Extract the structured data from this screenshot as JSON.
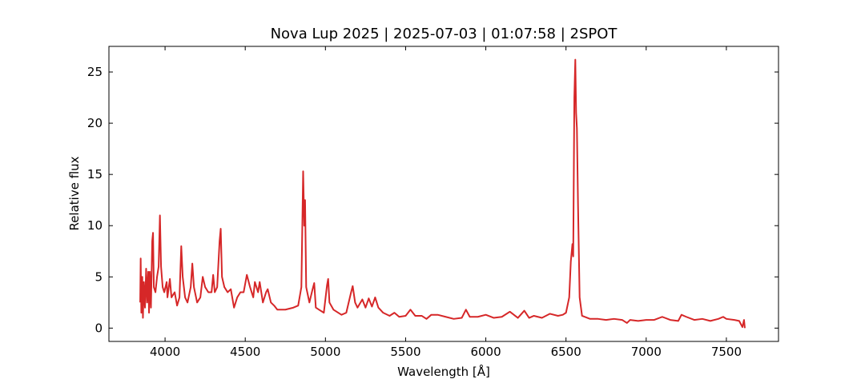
{
  "chart_data": {
    "type": "line",
    "title": "Nova Lup 2025 | 2025-07-03 | 01:07:58 | 2SPOT",
    "x_label": "Wavelength [Å]",
    "y_label": "Relative flux",
    "x": [
      3845,
      3848,
      3852,
      3858,
      3862,
      3868,
      3875,
      3882,
      3888,
      3895,
      3900,
      3905,
      3912,
      3920,
      3925,
      3930,
      3940,
      3950,
      3960,
      3968,
      3975,
      3985,
      3995,
      4010,
      4015,
      4030,
      4040,
      4060,
      4075,
      4090,
      4101,
      4110,
      4125,
      4140,
      4160,
      4170,
      4180,
      4200,
      4220,
      4235,
      4250,
      4270,
      4290,
      4300,
      4310,
      4325,
      4340,
      4347,
      4355,
      4370,
      4390,
      4410,
      4430,
      4450,
      4470,
      4490,
      4510,
      4530,
      4550,
      4560,
      4580,
      4590,
      4610,
      4630,
      4640,
      4660,
      4680,
      4700,
      4750,
      4800,
      4830,
      4850,
      4861,
      4868,
      4873,
      4880,
      4900,
      4920,
      4930,
      4940,
      4960,
      4990,
      5010,
      5017,
      5025,
      5050,
      5100,
      5130,
      5160,
      5170,
      5185,
      5200,
      5230,
      5250,
      5270,
      5290,
      5310,
      5330,
      5360,
      5400,
      5430,
      5460,
      5500,
      5530,
      5560,
      5600,
      5630,
      5660,
      5700,
      5750,
      5800,
      5850,
      5876,
      5900,
      5950,
      6000,
      6050,
      6100,
      6150,
      6200,
      6240,
      6270,
      6300,
      6350,
      6400,
      6450,
      6480,
      6500,
      6520,
      6530,
      6540,
      6545,
      6552,
      6558,
      6563,
      6568,
      6575,
      6585,
      6600,
      6650,
      6700,
      6750,
      6800,
      6850,
      6880,
      6900,
      6950,
      7000,
      7050,
      7100,
      7150,
      7200,
      7220,
      7250,
      7300,
      7350,
      7400,
      7450,
      7480,
      7500,
      7550,
      7580,
      7600,
      7610,
      7615
    ],
    "series": [
      {
        "name": "Nova Lup 2025",
        "color": "#d62728",
        "values": [
          2.5,
          6.8,
          1.5,
          5,
          1.0,
          4.5,
          2,
          5.8,
          2.5,
          5.5,
          1.5,
          5.5,
          2,
          8.5,
          9.3,
          4,
          3.5,
          5,
          6,
          11.0,
          6,
          4,
          3.5,
          4.5,
          3,
          4.8,
          3,
          3.5,
          2.2,
          3,
          8.0,
          5,
          3,
          2.5,
          4,
          6.3,
          4,
          2.5,
          3,
          5,
          4,
          3.5,
          3.5,
          5.2,
          3.5,
          4,
          8.5,
          9.7,
          5,
          4,
          3.5,
          3.8,
          2,
          3,
          3.5,
          3.5,
          5.2,
          4,
          3,
          4.5,
          3.5,
          4.5,
          2.5,
          3.5,
          3.8,
          2.5,
          2.2,
          1.8,
          1.8,
          2,
          2.2,
          4,
          15.3,
          10,
          12.5,
          4,
          2.5,
          3.8,
          4.4,
          2,
          1.8,
          1.5,
          4.2,
          4.8,
          2.5,
          1.8,
          1.3,
          1.5,
          3.5,
          4.1,
          2.5,
          2,
          2.8,
          2,
          2.9,
          2.1,
          3,
          2,
          1.5,
          1.2,
          1.5,
          1.1,
          1.2,
          1.8,
          1.2,
          1.2,
          0.9,
          1.3,
          1.3,
          1.1,
          0.9,
          1.0,
          1.8,
          1.1,
          1.1,
          1.3,
          1.0,
          1.1,
          1.6,
          1.0,
          1.7,
          1.0,
          1.2,
          1.0,
          1.4,
          1.2,
          1.3,
          1.5,
          3,
          6.5,
          8.2,
          7,
          22.5,
          26.2,
          21,
          19.5,
          12,
          3,
          1.2,
          0.9,
          0.9,
          0.8,
          0.9,
          0.8,
          0.5,
          0.8,
          0.7,
          0.8,
          0.8,
          1.1,
          0.8,
          0.7,
          1.3,
          1.1,
          0.8,
          0.9,
          0.7,
          0.9,
          1.1,
          0.9,
          0.8,
          0.7,
          0.1,
          0.8,
          0
        ]
      }
    ],
    "xlim": [
      3650,
      7825
    ],
    "ylim": [
      -1.3,
      27.5
    ],
    "xticks": [
      4000,
      4500,
      5000,
      5500,
      6000,
      6500,
      7000,
      7500
    ],
    "yticks": [
      0,
      5,
      10,
      15,
      20,
      25
    ]
  }
}
